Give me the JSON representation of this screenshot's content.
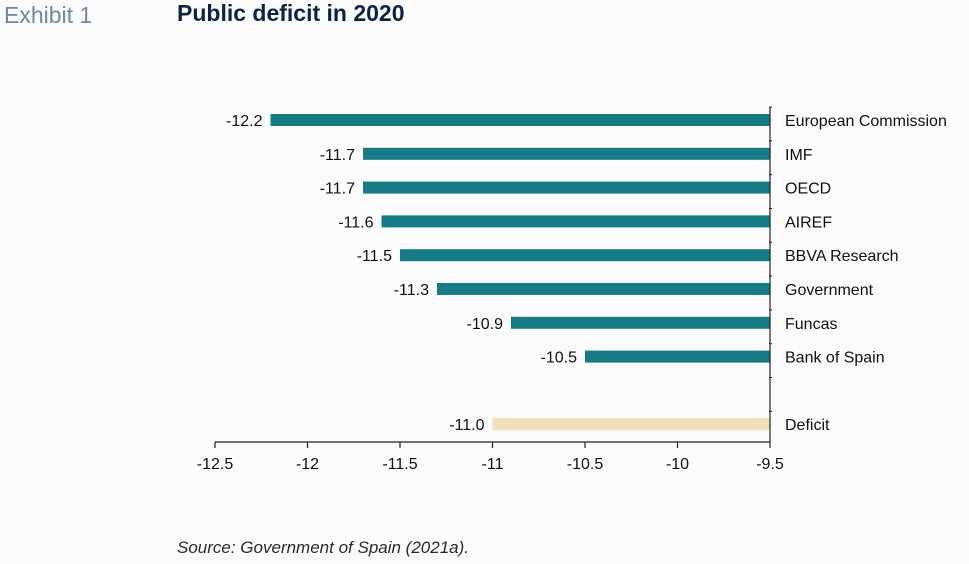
{
  "header": {
    "exhibit": "Exhibit 1",
    "title": "Public deficit in 2020"
  },
  "footer": {
    "source": "Source: Government of Spain (2021a)."
  },
  "colors": {
    "forecast_bar": "#167b86",
    "deficit_bar": "#efe0bb",
    "axis": "#222222"
  },
  "chart_data": {
    "type": "bar",
    "orientation": "horizontal",
    "title": "Public deficit in 2020",
    "categories": [
      "European Commission",
      "IMF",
      "OECD",
      "AIREF",
      "BBVA Research",
      "Government",
      "Funcas",
      "Bank of Spain",
      "",
      "Deficit"
    ],
    "values": [
      -12.2,
      -11.7,
      -11.7,
      -11.6,
      -11.5,
      -11.3,
      -10.9,
      -10.5,
      null,
      -11.0
    ],
    "data_labels": [
      "-12.2",
      "-11.7",
      "-11.7",
      "-11.6",
      "-11.5",
      "-11.3",
      "-10.9",
      "-10.5",
      "",
      "-11.0"
    ],
    "xlim": [
      -12.5,
      -9.5
    ],
    "xticks": [
      -12.5,
      -12,
      -11.5,
      -11,
      -10.5,
      -10,
      -9.5
    ],
    "xtick_labels": [
      "-12.5",
      "-12",
      "-11.5",
      "-11",
      "-10.5",
      "-10",
      "-9.5"
    ],
    "highlight_category": "Deficit",
    "grid": false,
    "legend": "none"
  }
}
